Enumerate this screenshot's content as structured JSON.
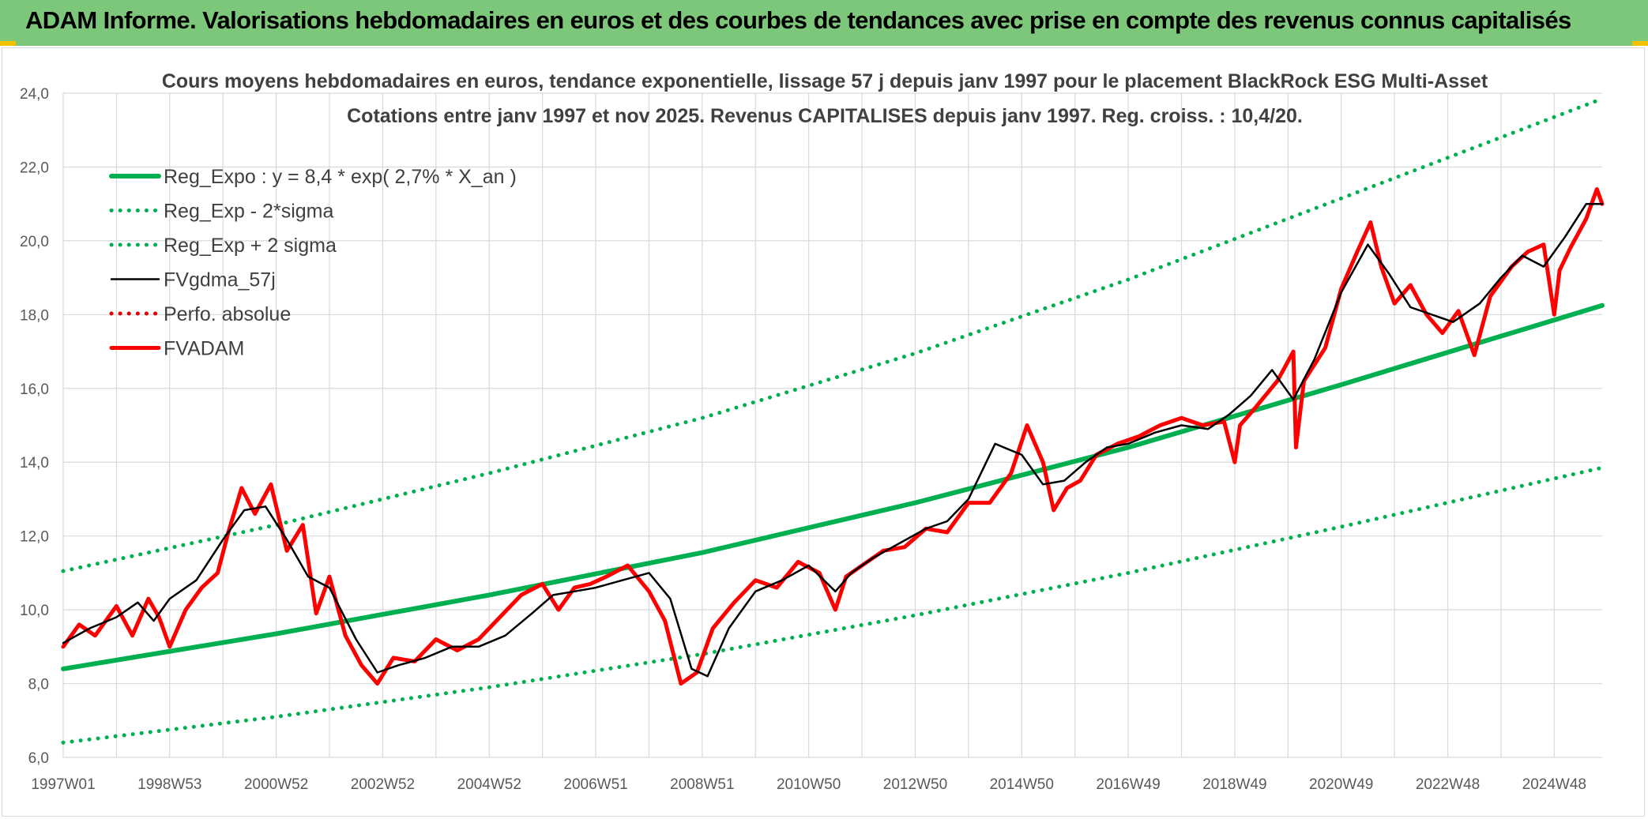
{
  "banner": {
    "title": "ADAM Informe. Valorisations hebdomadaires en euros et des courbes de tendances avec prise en compte des revenus connus capitalisés",
    "background": "#7dc77a"
  },
  "chart_data": {
    "type": "line",
    "title": "Cours moyens hebdomadaires en euros, tendance exponentielle, lissage 57 j depuis janv 1997 pour le placement BlackRock ESG Multi-Asset",
    "subtitle": "Cotations entre janv 1997 et nov 2025. Revenus CAPITALISES depuis janv 1997. Reg. croiss. : 10,4/20.",
    "xlabel": "",
    "ylabel": "",
    "ylim": [
      6,
      24
    ],
    "xlim": [
      1997.0,
      2025.9
    ],
    "y_ticks": [
      "6,0",
      "8,0",
      "10,0",
      "12,0",
      "14,0",
      "16,0",
      "18,0",
      "20,0",
      "22,0",
      "24,0"
    ],
    "x_ticks": [
      {
        "label": "1997W01",
        "x": 1997.0
      },
      {
        "label": "1998W53",
        "x": 1999.0
      },
      {
        "label": "2000W52",
        "x": 2001.0
      },
      {
        "label": "2002W52",
        "x": 2003.0
      },
      {
        "label": "2004W52",
        "x": 2005.0
      },
      {
        "label": "2006W51",
        "x": 2007.0
      },
      {
        "label": "2008W51",
        "x": 2009.0
      },
      {
        "label": "2010W50",
        "x": 2011.0
      },
      {
        "label": "2012W50",
        "x": 2013.0
      },
      {
        "label": "2014W50",
        "x": 2015.0
      },
      {
        "label": "2016W49",
        "x": 2017.0
      },
      {
        "label": "2018W49",
        "x": 2019.0
      },
      {
        "label": "2020W49",
        "x": 2021.0
      },
      {
        "label": "2022W48",
        "x": 2023.0
      },
      {
        "label": "2024W48",
        "x": 2025.0
      }
    ],
    "grid": true,
    "legend_placement": "top-left",
    "series": [
      {
        "name": "Reg_Expo : y = 8,4 * exp( 2,7% *  X_an )",
        "color": "#00b050",
        "style": "solid-thick",
        "x": [
          1997.0,
          2001.0,
          2005.0,
          2009.0,
          2013.0,
          2017.0,
          2021.0,
          2025.9
        ],
        "values": [
          8.4,
          9.35,
          10.4,
          11.55,
          12.9,
          14.4,
          16.1,
          18.25
        ]
      },
      {
        "name": "Reg_Exp - 2*sigma",
        "color": "#00b050",
        "style": "dotted",
        "x": [
          1997.0,
          2001.0,
          2005.0,
          2009.0,
          2013.0,
          2017.0,
          2021.0,
          2025.9
        ],
        "values": [
          6.4,
          7.1,
          7.9,
          8.8,
          9.85,
          11.0,
          12.25,
          13.85
        ]
      },
      {
        "name": "Reg_Exp + 2 sigma",
        "color": "#00b050",
        "style": "dotted",
        "x": [
          1997.0,
          2001.0,
          2005.0,
          2009.0,
          2013.0,
          2017.0,
          2021.0,
          2025.9
        ],
        "values": [
          11.05,
          12.3,
          13.7,
          15.2,
          16.95,
          18.95,
          21.15,
          23.85
        ]
      },
      {
        "name": "FVgdma_57j",
        "color": "#000000",
        "style": "solid",
        "x": [
          1997.0,
          1997.5,
          1998.0,
          1998.4,
          1998.7,
          1999.0,
          1999.5,
          2000.0,
          2000.4,
          2000.8,
          2001.2,
          2001.6,
          2002.0,
          2002.5,
          2002.9,
          2003.3,
          2003.8,
          2004.3,
          2004.8,
          2005.3,
          2005.8,
          2006.2,
          2006.6,
          2007.0,
          2007.5,
          2008.0,
          2008.4,
          2008.8,
          2009.1,
          2009.5,
          2010.0,
          2010.5,
          2011.0,
          2011.5,
          2011.8,
          2012.2,
          2012.7,
          2013.2,
          2013.6,
          2014.0,
          2014.5,
          2015.0,
          2015.4,
          2015.8,
          2016.2,
          2016.6,
          2017.0,
          2017.5,
          2018.0,
          2018.5,
          2018.9,
          2019.3,
          2019.7,
          2020.1,
          2020.5,
          2021.0,
          2021.5,
          2021.9,
          2022.3,
          2022.7,
          2023.1,
          2023.6,
          2024.0,
          2024.4,
          2024.8,
          2025.2,
          2025.6,
          2025.9
        ],
        "values": [
          9.1,
          9.5,
          9.8,
          10.2,
          9.7,
          10.3,
          10.8,
          11.9,
          12.7,
          12.8,
          11.9,
          10.9,
          10.6,
          9.2,
          8.3,
          8.5,
          8.7,
          9.0,
          9.0,
          9.3,
          9.9,
          10.4,
          10.5,
          10.6,
          10.8,
          11.0,
          10.3,
          8.4,
          8.2,
          9.5,
          10.5,
          10.8,
          11.2,
          10.5,
          11.0,
          11.4,
          11.8,
          12.2,
          12.4,
          13.0,
          14.5,
          14.2,
          13.4,
          13.5,
          14.0,
          14.4,
          14.5,
          14.8,
          15.0,
          14.9,
          15.3,
          15.8,
          16.5,
          15.7,
          16.8,
          18.6,
          19.9,
          19.1,
          18.2,
          18.0,
          17.8,
          18.3,
          19.0,
          19.6,
          19.3,
          20.1,
          21.0,
          21.0
        ]
      },
      {
        "name": "Perfo. absolue",
        "color": "#e00000",
        "style": "dotted",
        "x": [],
        "values": []
      },
      {
        "name": "FVADAM",
        "color": "#ff0000",
        "style": "solid-thick",
        "x": [
          1997.0,
          1997.3,
          1997.6,
          1998.0,
          1998.3,
          1998.6,
          1998.8,
          1999.0,
          1999.3,
          1999.6,
          1999.9,
          2000.1,
          2000.35,
          2000.6,
          2000.9,
          2001.2,
          2001.5,
          2001.75,
          2002.0,
          2002.3,
          2002.6,
          2002.9,
          2003.2,
          2003.6,
          2004.0,
          2004.4,
          2004.8,
          2005.2,
          2005.6,
          2006.0,
          2006.3,
          2006.6,
          2006.9,
          2007.2,
          2007.6,
          2008.0,
          2008.3,
          2008.6,
          2008.9,
          2009.2,
          2009.6,
          2010.0,
          2010.4,
          2010.8,
          2011.2,
          2011.5,
          2011.7,
          2012.0,
          2012.4,
          2012.8,
          2013.2,
          2013.6,
          2014.0,
          2014.4,
          2014.8,
          2015.1,
          2015.4,
          2015.6,
          2015.85,
          2016.1,
          2016.4,
          2016.8,
          2017.2,
          2017.6,
          2018.0,
          2018.4,
          2018.8,
          2019.0,
          2019.1,
          2019.4,
          2019.8,
          2020.1,
          2020.15,
          2020.3,
          2020.7,
          2021.0,
          2021.3,
          2021.55,
          2021.75,
          2022.0,
          2022.3,
          2022.6,
          2022.9,
          2023.2,
          2023.5,
          2023.8,
          2024.2,
          2024.5,
          2024.8,
          2025.0,
          2025.1,
          2025.3,
          2025.6,
          2025.8,
          2025.9
        ],
        "values": [
          9.0,
          9.6,
          9.3,
          10.1,
          9.3,
          10.3,
          9.8,
          9.0,
          10.0,
          10.6,
          11.0,
          12.1,
          13.3,
          12.6,
          13.4,
          11.6,
          12.3,
          9.9,
          10.9,
          9.3,
          8.5,
          8.0,
          8.7,
          8.6,
          9.2,
          8.9,
          9.2,
          9.8,
          10.4,
          10.7,
          10.0,
          10.6,
          10.7,
          10.9,
          11.2,
          10.5,
          9.7,
          8.0,
          8.3,
          9.5,
          10.2,
          10.8,
          10.6,
          11.3,
          11.0,
          10.0,
          10.9,
          11.2,
          11.6,
          11.7,
          12.2,
          12.1,
          12.9,
          12.9,
          13.7,
          15.0,
          14.0,
          12.7,
          13.3,
          13.5,
          14.2,
          14.5,
          14.7,
          15.0,
          15.2,
          15.0,
          15.1,
          14.0,
          15.0,
          15.5,
          16.2,
          17.0,
          14.4,
          16.2,
          17.1,
          18.7,
          19.7,
          20.5,
          19.3,
          18.3,
          18.8,
          18.0,
          17.5,
          18.1,
          16.9,
          18.5,
          19.3,
          19.7,
          19.9,
          18.0,
          19.2,
          19.8,
          20.6,
          21.4,
          21.0
        ]
      }
    ]
  }
}
